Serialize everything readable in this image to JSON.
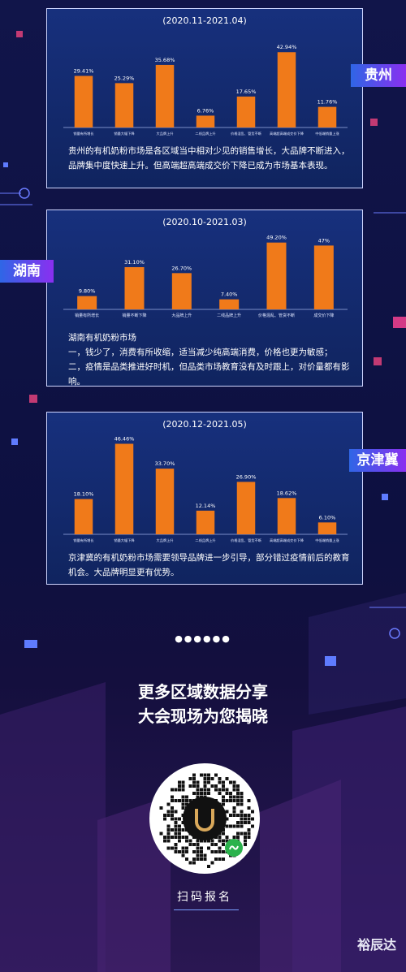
{
  "colors": {
    "bar": "#f07a1a",
    "panel_border": "#cfd6ff",
    "tag_gradient": [
      "#2f66e6",
      "#8a2ff0"
    ]
  },
  "chart_data": [
    {
      "type": "bar",
      "title": "(2020.11-2021.04)",
      "categories": [
        "销量有所增长",
        "销量大幅下降",
        "大品牌上升",
        "二线品牌上升",
        "价格混乱、管货不断",
        "高端超高端成交价下降",
        "中低端销量上涨"
      ],
      "values": [
        29.41,
        25.29,
        35.68,
        6.76,
        17.65,
        42.94,
        11.76
      ],
      "value_labels": [
        "29.41%",
        "25.29%",
        "35.68%",
        "6.76%",
        "17.65%",
        "42.94%",
        "11.76%"
      ],
      "ylim": [
        0,
        50
      ],
      "grid": false
    },
    {
      "type": "bar",
      "title": "(2020.10-2021.03)",
      "categories": [
        "销量有所增长",
        "销量不断下降",
        "大品牌上升",
        "二线品牌上升",
        "价格混乱、管货不断",
        "成交价下降"
      ],
      "values": [
        9.8,
        31.1,
        26.7,
        7.4,
        49.2,
        47
      ],
      "value_labels": [
        "9.80%",
        "31.10%",
        "26.70%",
        "7.40%",
        "49.20%",
        "47%"
      ],
      "ylim": [
        0,
        55
      ],
      "grid": false
    },
    {
      "type": "bar",
      "title": "(2020.12-2021.05)",
      "categories": [
        "销量有所增长",
        "销量大幅下降",
        "大品牌上升",
        "二线品牌上升",
        "价格混乱、管货不断",
        "高端超高端成交价下降",
        "中低端销量上涨"
      ],
      "values": [
        18.1,
        46.46,
        33.7,
        12.14,
        26.9,
        18.62,
        6.1
      ],
      "value_labels": [
        "18.10%",
        "46.46%",
        "33.70%",
        "12.14%",
        "26.90%",
        "18.62%",
        "6.10%"
      ],
      "ylim": [
        0,
        50
      ],
      "grid": false
    }
  ],
  "sections": {
    "guizhou": {
      "tag": "贵州",
      "desc": "贵州的有机奶粉市场是各区域当中相对少见的销售增长，大品牌不断进入，品牌集中度快速上升。但高端超高端成交价下降已成为市场基本表现。"
    },
    "hunan": {
      "tag": "湖南",
      "desc_title": "湖南有机奶粉市场",
      "desc_1": "一，钱少了，消费有所收缩，适当减少纯高端消费，价格也更为敏感；",
      "desc_2": "二，疫情是品类推进好时机，但品类市场教育没有及时跟上，对价量都有影响。"
    },
    "jingjinji": {
      "tag": "京津冀",
      "desc": "京津冀的有机奶粉市场需要领导品牌进一步引导，部分错过疫情前后的教育机会。大品牌明显更有优势。"
    }
  },
  "footer": {
    "dots": "●●●●●●",
    "cta_line1": "更多区域数据分享",
    "cta_line2": "大会现场为您揭晓",
    "scan_label": "扫码报名",
    "brand": "裕辰达",
    "qr_logo_icon": "u-logo-icon"
  }
}
